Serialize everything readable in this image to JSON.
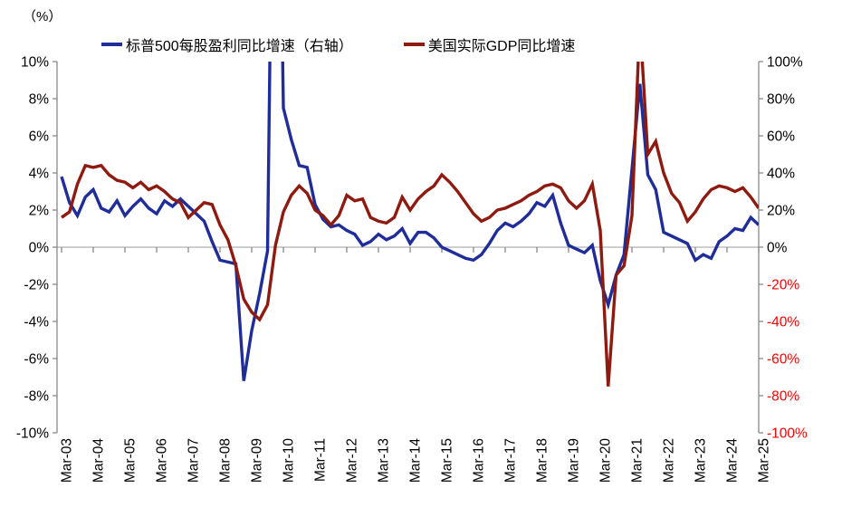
{
  "header": {
    "unit_label": "（%）"
  },
  "legend": [
    {
      "label": "标普500每股盈利同比增速（右轴）",
      "color": "#1F2D9B"
    },
    {
      "label": "美国实际GDP同比增速",
      "color": "#8E1A10"
    }
  ],
  "chart_data": {
    "type": "line",
    "frequency": "quarterly",
    "x_start": "Mar-03",
    "x_end": "Mar-25",
    "x_tick_labels": [
      "Mar-03",
      "Mar-04",
      "Mar-05",
      "Mar-06",
      "Mar-07",
      "Mar-08",
      "Mar-09",
      "Mar-10",
      "Mar-11",
      "Mar-12",
      "Mar-13",
      "Mar-14",
      "Mar-15",
      "Mar-16",
      "Mar-17",
      "Mar-18",
      "Mar-19",
      "Mar-20",
      "Mar-21",
      "Mar-22",
      "Mar-23",
      "Mar-24",
      "Mar-25"
    ],
    "left_axis": {
      "min": -10,
      "max": 10,
      "step": 2,
      "labels": [
        "10%",
        "8%",
        "6%",
        "4%",
        "2%",
        "0%",
        "-2%",
        "-4%",
        "-6%",
        "-8%",
        "-10%"
      ],
      "label_color": "#000000"
    },
    "right_axis": {
      "min": -100,
      "max": 100,
      "step": 20,
      "labels": [
        "100%",
        "80%",
        "60%",
        "40%",
        "20%",
        "0%",
        "-20%",
        "-40%",
        "-60%",
        "-80%",
        "-100%"
      ],
      "positive_label_color": "#000000",
      "negative_label_color": "#FF0000"
    },
    "zero_line": true,
    "zero_line_color": "#BFBFBF",
    "axis_color": "#808080",
    "legend_position": "top",
    "series": [
      {
        "name": "标普500每股盈利同比增速（右轴）",
        "axis": "right",
        "color": "#1F2D9B",
        "values": [
          38,
          24,
          17,
          27,
          31,
          21,
          19,
          25,
          17,
          22,
          26,
          21,
          18,
          25,
          22,
          26,
          22,
          18,
          14,
          3,
          -7,
          -8,
          -9,
          -72,
          -45,
          -25,
          -2,
          350,
          75,
          58,
          44,
          43,
          23,
          15,
          11,
          12,
          9,
          7,
          1,
          3,
          7,
          4,
          6,
          10,
          2,
          8,
          8,
          5,
          0,
          -2,
          -4,
          -6,
          -7,
          -4,
          2,
          9,
          13,
          11,
          14,
          18,
          24,
          22,
          28,
          13,
          1,
          -1,
          -3,
          1,
          -18,
          -31,
          -15,
          -4,
          42,
          88,
          39,
          31,
          8,
          6,
          4,
          2,
          -7,
          -4,
          -6,
          3,
          6,
          10,
          9,
          16,
          12
        ]
      },
      {
        "name": "美国实际GDP同比增速",
        "axis": "left",
        "color": "#8E1A10",
        "values": [
          1.6,
          1.9,
          3.4,
          4.4,
          4.3,
          4.4,
          3.9,
          3.6,
          3.5,
          3.2,
          3.5,
          3.1,
          3.3,
          3.0,
          2.6,
          2.4,
          1.6,
          2.0,
          2.4,
          2.3,
          1.2,
          0.4,
          -1.0,
          -2.8,
          -3.5,
          -3.9,
          -3.1,
          0.1,
          1.9,
          2.8,
          3.3,
          2.9,
          2.0,
          1.7,
          1.2,
          1.7,
          2.8,
          2.5,
          2.6,
          1.6,
          1.4,
          1.3,
          1.6,
          2.7,
          2.0,
          2.6,
          3.0,
          3.3,
          3.9,
          3.5,
          3.0,
          2.4,
          1.8,
          1.4,
          1.6,
          2.0,
          2.1,
          2.3,
          2.5,
          2.8,
          3.0,
          3.3,
          3.4,
          3.2,
          2.5,
          2.1,
          2.5,
          3.4,
          0.9,
          -7.5,
          -1.5,
          -1.0,
          1.7,
          12.2,
          5.0,
          5.7,
          4.0,
          2.9,
          2.4,
          1.4,
          1.9,
          2.6,
          3.1,
          3.3,
          3.2,
          3.0,
          3.2,
          2.7,
          2.1
        ]
      }
    ]
  }
}
